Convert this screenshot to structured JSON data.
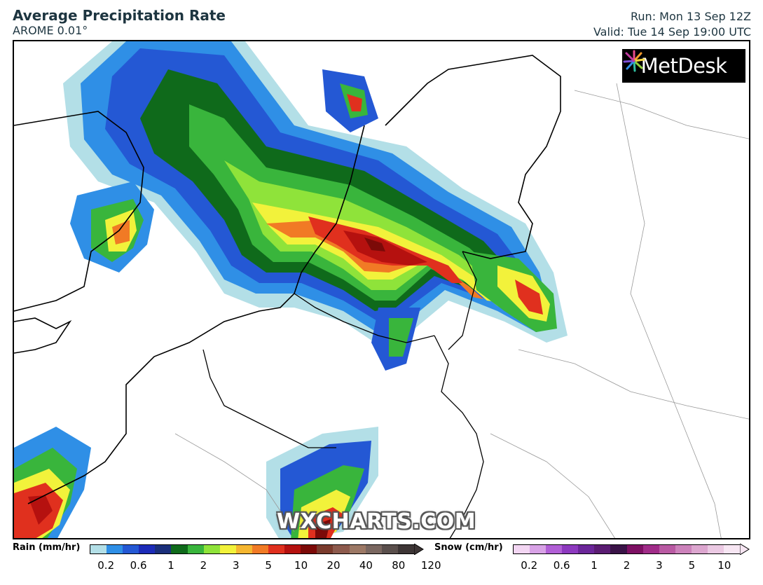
{
  "header": {
    "title": "Average Precipitation Rate",
    "model": "AROME 0.01°",
    "run": "Run: Mon 13 Sep 12Z",
    "valid": "Valid: Tue 14 Sep 19:00 UTC"
  },
  "logo": {
    "text": "MetDesk"
  },
  "watermark": "WXCHARTS.COM",
  "legend": {
    "rain_label": "Rain (mm/hr)",
    "rain_ticks": [
      "0.2",
      "0.6",
      "1",
      "2",
      "3",
      "5",
      "10",
      "20",
      "40",
      "80",
      "120"
    ],
    "rain_colors": [
      "#b3dfe7",
      "#2f8fe6",
      "#2458d4",
      "#1c2bb8",
      "#1a2f7a",
      "#0f6a1b",
      "#39b53c",
      "#8fe33a",
      "#f2f23b",
      "#f5b630",
      "#f17a25",
      "#e0301e",
      "#b5110f",
      "#7c0a08",
      "#7a3b2d",
      "#8d5a4d",
      "#9c7865",
      "#7a6760",
      "#5a4f4c",
      "#3d3535"
    ],
    "snow_label": "Snow (cm/hr)",
    "snow_ticks": [
      "0.2",
      "0.6",
      "1",
      "2",
      "3",
      "5",
      "10"
    ],
    "snow_colors": [
      "#f3d6f3",
      "#d8a2e6",
      "#b15fd6",
      "#8d39bf",
      "#6b2699",
      "#5a1c72",
      "#3a1347",
      "#7d1063",
      "#a02c88",
      "#b95aa3",
      "#cc82bb",
      "#dca6cf",
      "#ebc9e3",
      "#f7e6f3"
    ]
  }
}
